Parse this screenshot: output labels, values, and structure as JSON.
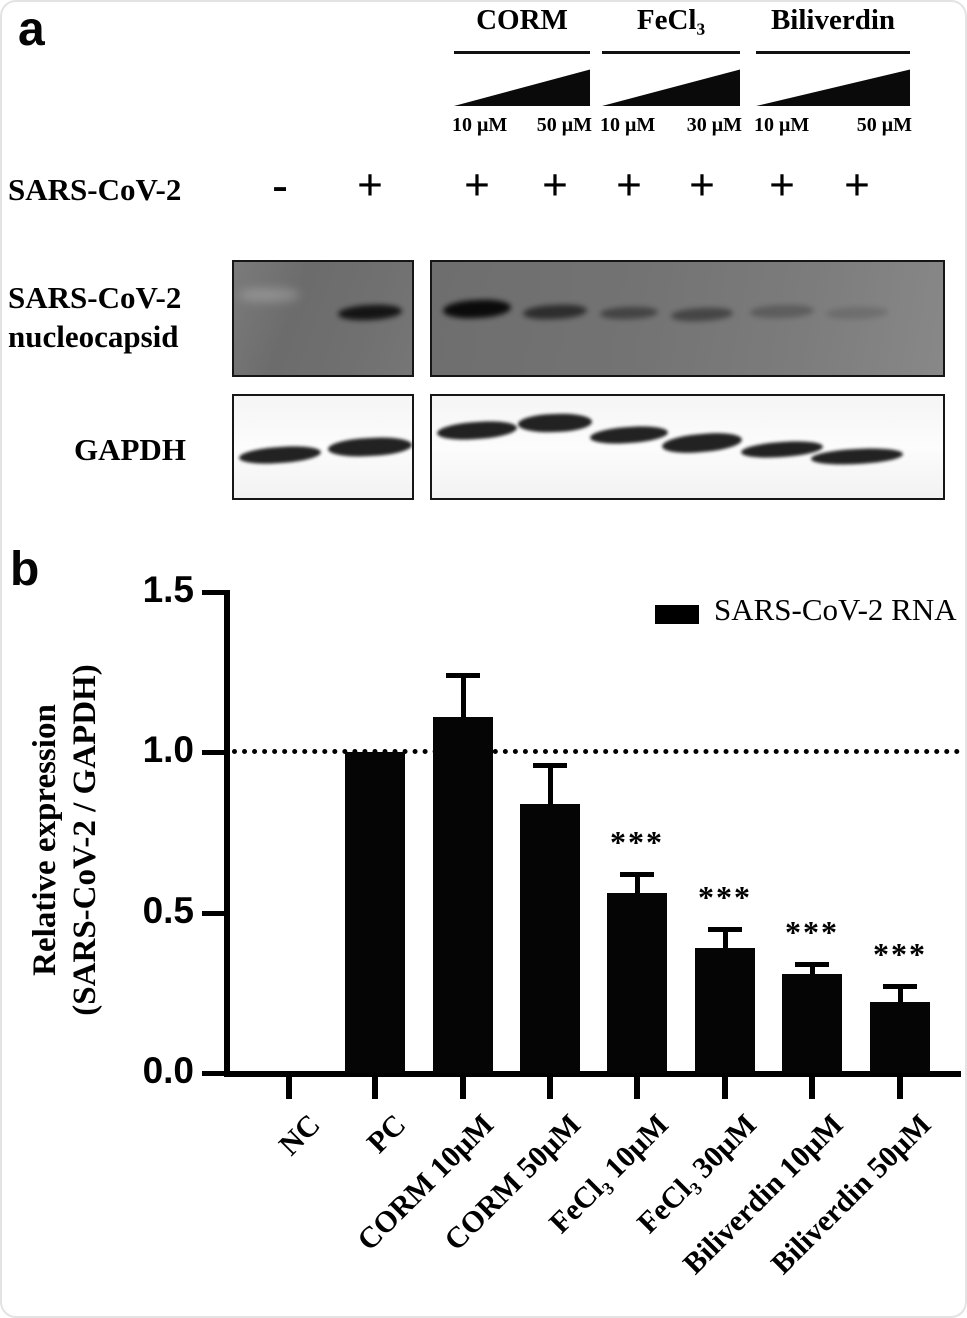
{
  "panel_a": {
    "label": "a",
    "treatment_groups": [
      {
        "name": "CORM",
        "doses": [
          "10 μM",
          "50 μM"
        ]
      },
      {
        "name": "FeCl₃",
        "doses": [
          "10 μM",
          "30 μM"
        ]
      },
      {
        "name": "Biliverdin",
        "doses": [
          "10 μM",
          "50 μM"
        ]
      }
    ],
    "virus_row": {
      "label": "SARS-CoV-2",
      "lane_signs": [
        "-",
        "+",
        "+",
        "+",
        "+",
        "+",
        "+",
        "+"
      ]
    },
    "blots": {
      "nucleocapsid": {
        "label_line1": "SARS-CoV-2",
        "label_line2": "nucleocapsid",
        "band_intensities": [
          "none",
          "strong",
          "very-strong",
          "medium",
          "weak",
          "weak",
          "very-weak",
          "trace"
        ]
      },
      "gapdh": {
        "label": "GAPDH",
        "band_intensities": [
          "strong",
          "strong",
          "strong",
          "strong",
          "strong",
          "strong",
          "strong",
          "strong"
        ]
      }
    }
  },
  "panel_b": {
    "label": "b"
  },
  "chart_data": {
    "type": "bar",
    "categories": [
      "NC",
      "PC",
      "CORM 10μM",
      "CORM 50μM",
      "FeCl₃ 10μM",
      "FeCl₃ 30μM",
      "Biliverdin 10μM",
      "Biliverdin 50μM"
    ],
    "values": [
      0,
      1.0,
      1.11,
      0.84,
      0.56,
      0.39,
      0.31,
      0.22
    ],
    "errors": [
      0,
      0,
      0.13,
      0.12,
      0.06,
      0.06,
      0.03,
      0.05
    ],
    "significance": [
      "",
      "",
      "",
      "",
      "***",
      "***",
      "***",
      "***"
    ],
    "ylabel_line1": "Relative expression",
    "ylabel_line2": "(SARS-CoV-2 / GAPDH)",
    "yticks": [
      0,
      0.5,
      1.0,
      1.5
    ],
    "ytick_labels": [
      "0.0",
      "0.5",
      "1.0",
      "1.5"
    ],
    "ylim": [
      0,
      1.5
    ],
    "reference_line": 1.0,
    "grid": false,
    "legend_position": "top-right",
    "legend": {
      "label": "SARS-CoV-2 RNA",
      "swatch_color": "#000000"
    },
    "bar_color": "#050505"
  }
}
